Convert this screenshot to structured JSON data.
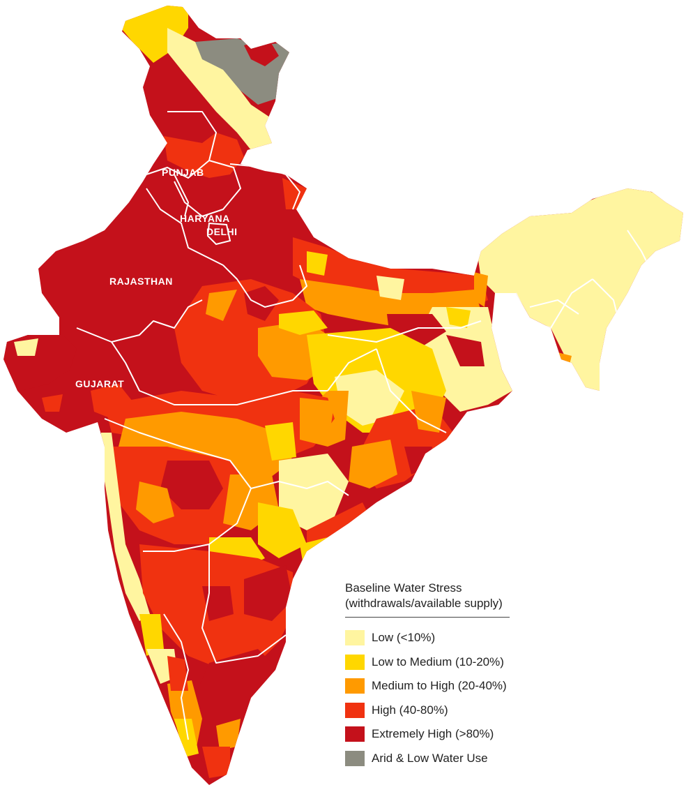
{
  "map": {
    "state_labels": {
      "punjab": "PUNJAB",
      "haryana": "HARYANA",
      "delhi": "DELHI",
      "rajasthan": "RAJASTHAN",
      "gujarat": "GUJARAT"
    }
  },
  "legend": {
    "title_line1": "Baseline Water Stress",
    "title_line2": "(withdrawals/available supply)",
    "items": [
      {
        "label": "Low (<10%)",
        "color": "#fff5a0"
      },
      {
        "label": "Low to Medium (10-20%)",
        "color": "#ffd700"
      },
      {
        "label": "Medium to High (20-40%)",
        "color": "#ff9a00"
      },
      {
        "label": "High (40-80%)",
        "color": "#f03210"
      },
      {
        "label": "Extremely High (>80%)",
        "color": "#c4111b"
      },
      {
        "label": "Arid & Low Water Use",
        "color": "#8c8c80"
      }
    ]
  }
}
